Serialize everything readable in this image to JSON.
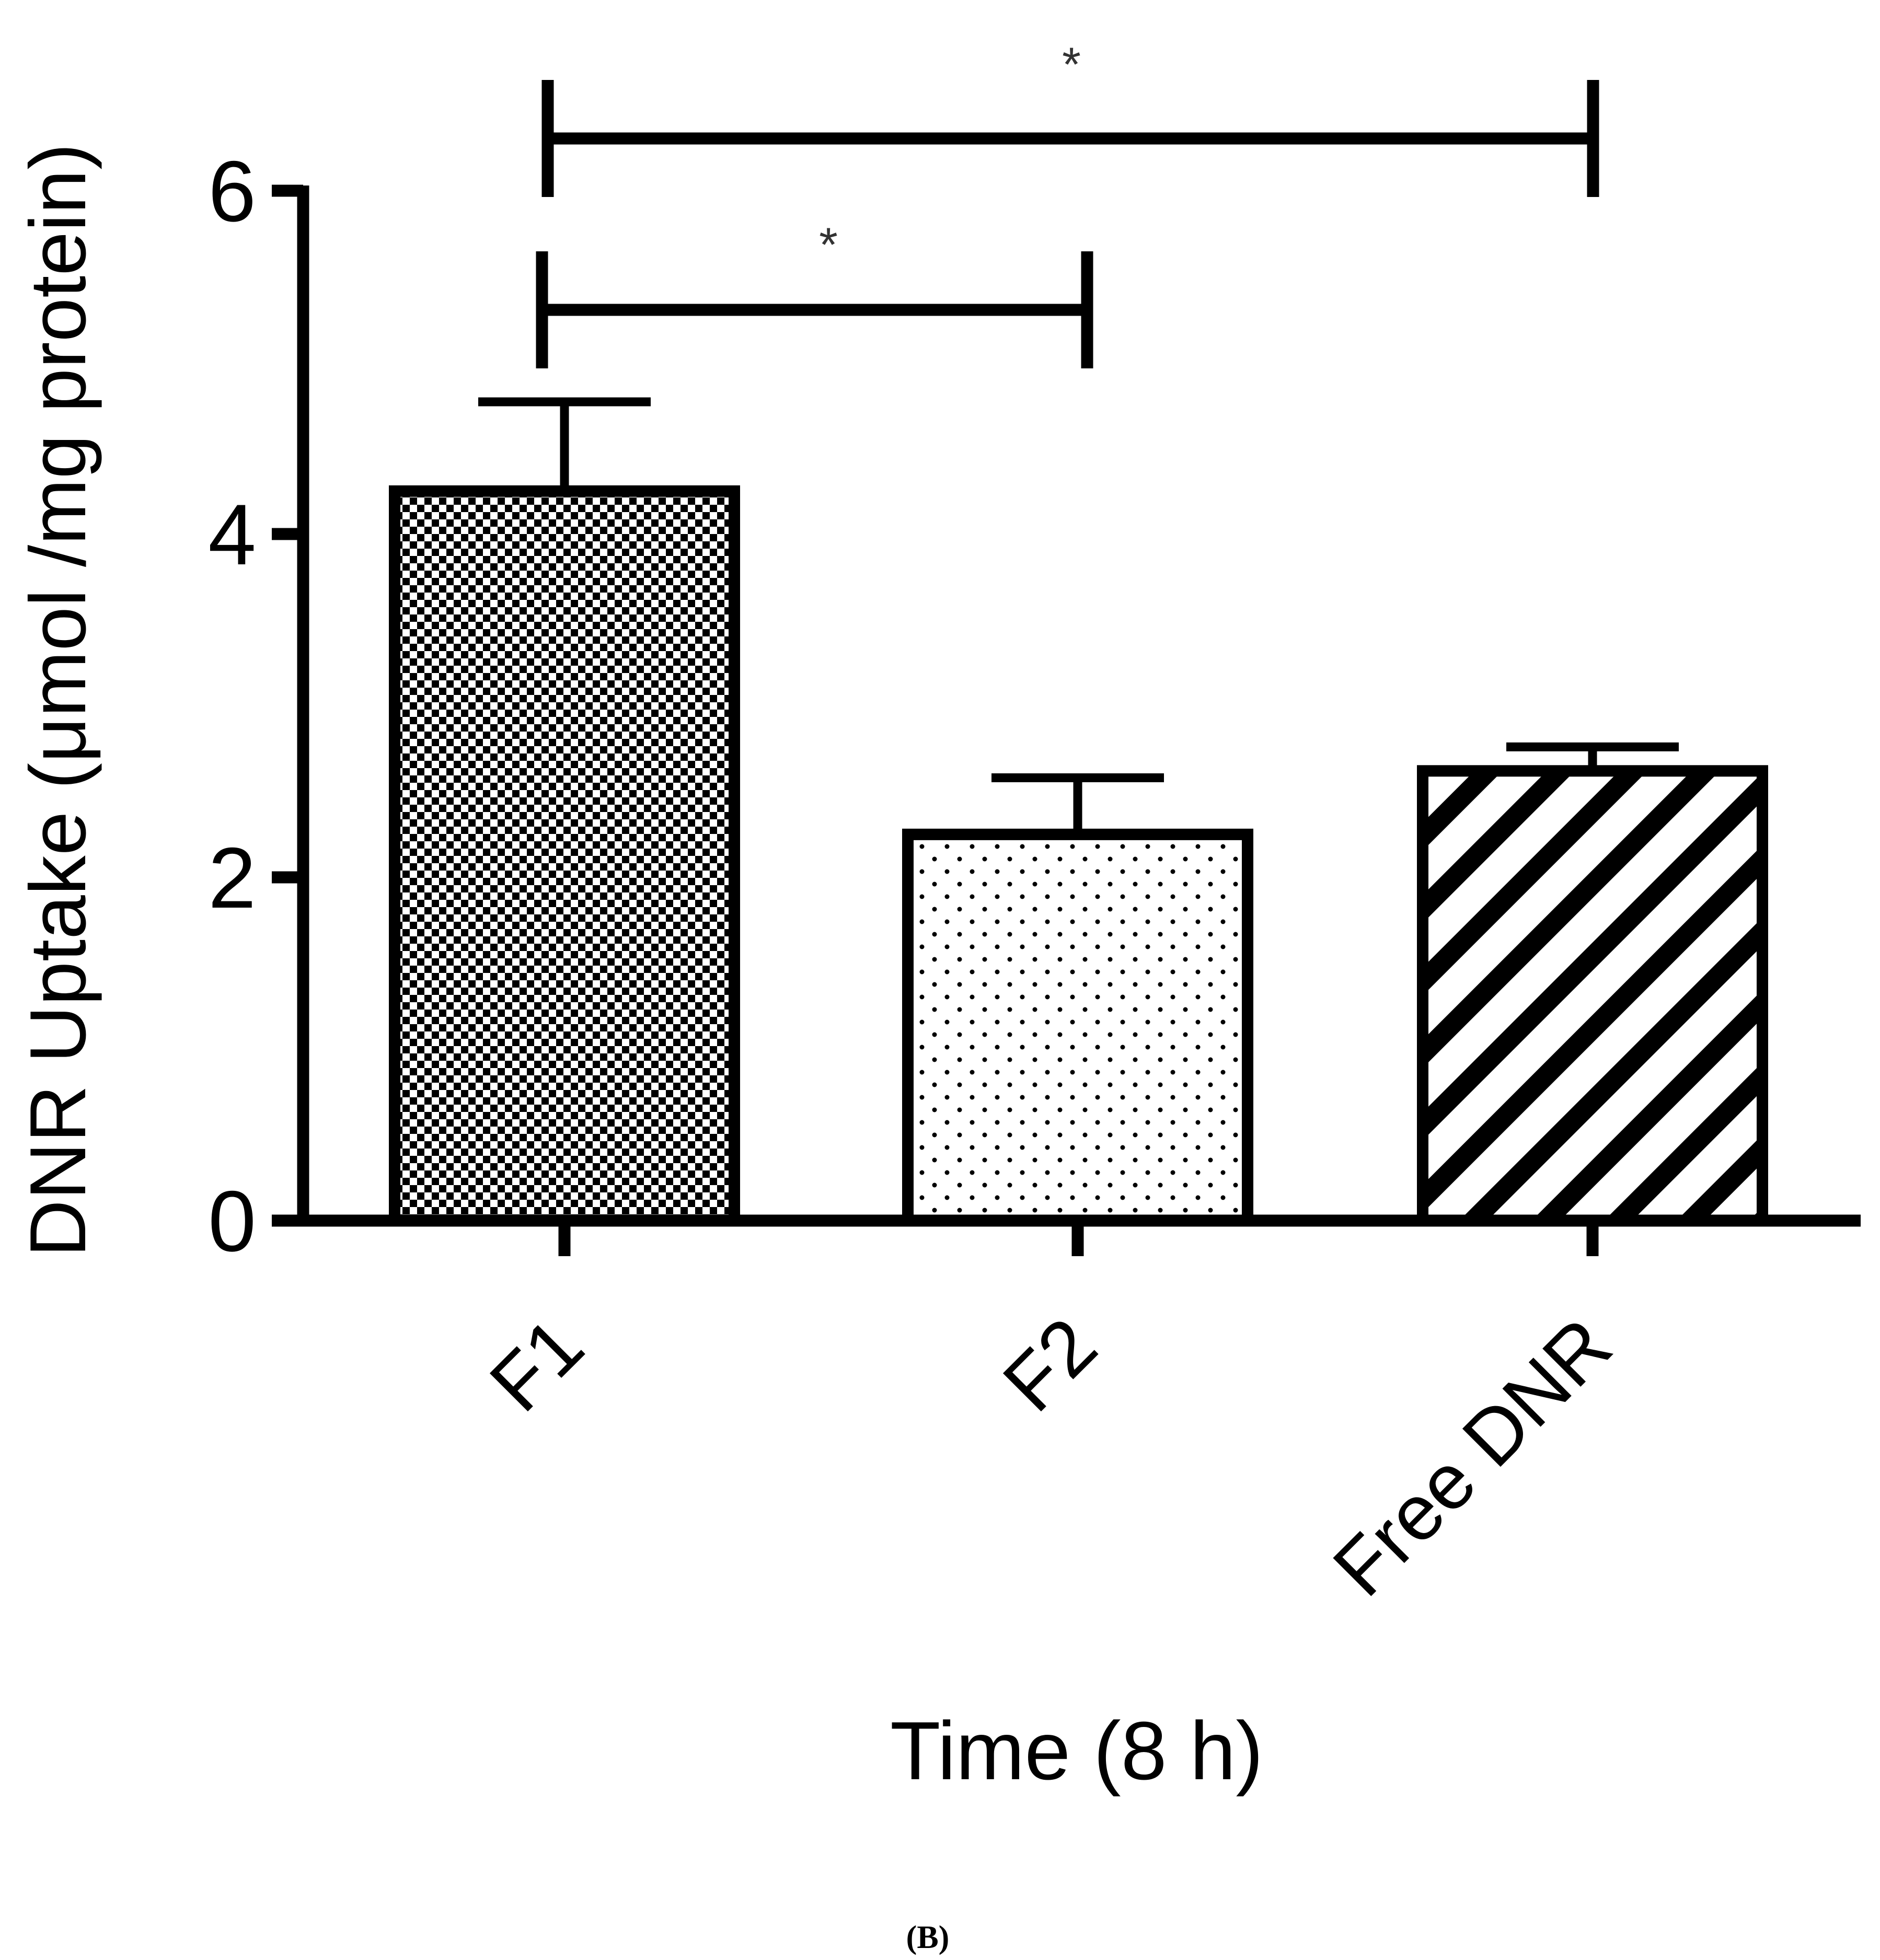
{
  "chart_data": {
    "type": "bar",
    "categories": [
      "F1",
      "F2",
      "Free DNR"
    ],
    "values": [
      4.25,
      2.25,
      2.62
    ],
    "errors": [
      0.52,
      0.33,
      0.14
    ],
    "fill_patterns": [
      "checkerboard",
      "dots",
      "diagonal-stripes"
    ],
    "xlabel": "Time (8 h)",
    "ylabel": "DNR Uptake (μmol /mg protein)",
    "ylim": [
      0,
      6
    ],
    "yticks": [
      "0",
      "2",
      "4",
      "6"
    ],
    "grid": false,
    "significance": [
      {
        "from": "F1",
        "to": "F2",
        "label": "*"
      },
      {
        "from": "F1",
        "to": "Free DNR",
        "label": "*"
      }
    ],
    "panel_label": "(B)",
    "colors": {
      "ink": "#000000",
      "background": "#ffffff"
    }
  }
}
